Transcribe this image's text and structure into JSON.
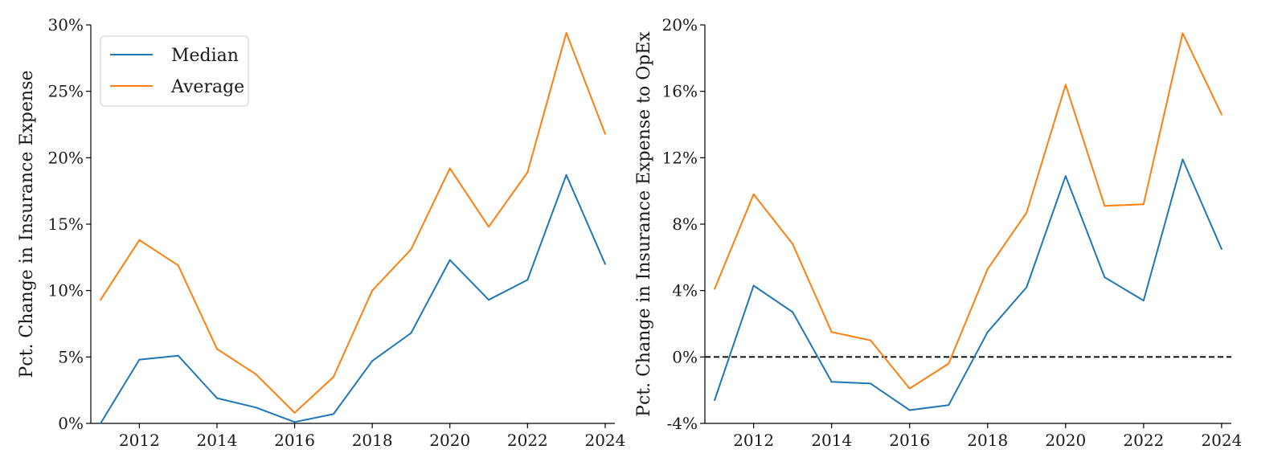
{
  "chart_data": [
    {
      "type": "line",
      "title": "",
      "xlabel": "",
      "ylabel": "Pct. Change in Insurance Expense",
      "x": [
        2011,
        2012,
        2013,
        2014,
        2015,
        2016,
        2017,
        2018,
        2019,
        2020,
        2021,
        2022,
        2023,
        2024
      ],
      "xticks": [
        2012,
        2014,
        2016,
        2018,
        2020,
        2022,
        2024
      ],
      "xtick_labels": [
        "2012",
        "2014",
        "2016",
        "2018",
        "2020",
        "2022",
        "2024"
      ],
      "xlim": [
        2010.75,
        2024.25
      ],
      "ylim": [
        0,
        30
      ],
      "yticks": [
        0,
        5,
        10,
        15,
        20,
        25,
        30
      ],
      "ytick_labels": [
        "0%",
        "5%",
        "10%",
        "15%",
        "20%",
        "25%",
        "30%"
      ],
      "grid": false,
      "legend": {
        "placement": "top-left",
        "entries": [
          "Median",
          "Average"
        ]
      },
      "series": [
        {
          "name": "Median",
          "color": "#1f77b4",
          "values": [
            0.0,
            4.8,
            5.1,
            1.9,
            1.2,
            0.1,
            0.7,
            4.7,
            6.8,
            12.3,
            9.3,
            10.8,
            18.7,
            12.0
          ]
        },
        {
          "name": "Average",
          "color": "#ff7f0e",
          "values": [
            9.3,
            13.8,
            11.9,
            5.6,
            3.7,
            0.8,
            3.5,
            10.0,
            13.1,
            19.2,
            14.8,
            18.9,
            29.4,
            21.8
          ]
        }
      ]
    },
    {
      "type": "line",
      "title": "",
      "xlabel": "",
      "ylabel": "Pct. Change in Insurance Expense to OpEx",
      "x": [
        2011,
        2012,
        2013,
        2014,
        2015,
        2016,
        2017,
        2018,
        2019,
        2020,
        2021,
        2022,
        2023,
        2024
      ],
      "xticks": [
        2012,
        2014,
        2016,
        2018,
        2020,
        2022,
        2024
      ],
      "xtick_labels": [
        "2012",
        "2014",
        "2016",
        "2018",
        "2020",
        "2022",
        "2024"
      ],
      "xlim": [
        2010.75,
        2024.25
      ],
      "ylim": [
        -4,
        20
      ],
      "yticks": [
        -4,
        0,
        4,
        8,
        12,
        16,
        20
      ],
      "ytick_labels": [
        "-4%",
        "0%",
        "4%",
        "8%",
        "12%",
        "16%",
        "20%"
      ],
      "grid": false,
      "reference_line": {
        "y": 0,
        "style": "dashed",
        "color": "#000000"
      },
      "series": [
        {
          "name": "Median",
          "color": "#1f77b4",
          "values": [
            -2.6,
            4.3,
            2.7,
            -1.5,
            -1.6,
            -3.2,
            -2.9,
            1.5,
            4.2,
            10.9,
            4.8,
            3.4,
            11.9,
            6.5
          ]
        },
        {
          "name": "Average",
          "color": "#ff7f0e",
          "values": [
            4.1,
            9.8,
            6.8,
            1.5,
            1.0,
            -1.9,
            -0.4,
            5.3,
            8.7,
            16.4,
            9.1,
            9.2,
            19.5,
            14.6
          ]
        }
      ]
    }
  ]
}
